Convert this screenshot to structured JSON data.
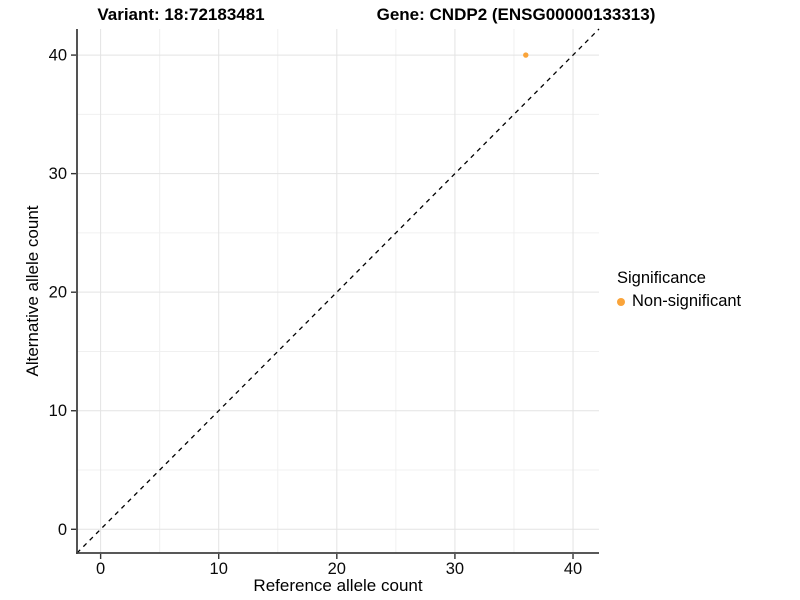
{
  "figure": {
    "title_left": "Variant: 18:72183481",
    "title_right": "Gene: CNDP2 (ENSG00000133313)"
  },
  "chart_data": {
    "type": "scatter",
    "title": "Variant: 18:72183481 — Gene: CNDP2 (ENSG00000133313)",
    "xlabel": "Reference allele count",
    "ylabel": "Alternative allele count",
    "xlim": [
      -2,
      42.2
    ],
    "ylim": [
      -2,
      42.2
    ],
    "x_ticks": [
      0,
      10,
      20,
      30,
      40
    ],
    "y_ticks": [
      0,
      10,
      20,
      30,
      40
    ],
    "x_minor_ticks": [
      5,
      15,
      25,
      35
    ],
    "y_minor_ticks": [
      5,
      15,
      25,
      35
    ],
    "grid": true,
    "points": [
      {
        "x": 36,
        "y": 40,
        "series": "Non-significant"
      }
    ],
    "identity_line": {
      "style": "dashed",
      "from": -2,
      "to": 42.2
    },
    "legend": {
      "title": "Significance",
      "position": "right",
      "entries": [
        {
          "label": "Non-significant",
          "color": "#FAA43A"
        }
      ]
    },
    "colors": {
      "point": "#FAA43A",
      "grid_major": "#e3e3e3",
      "grid_minor": "#f0f0f0",
      "axis_line": "#404040",
      "tick_mark": "#333333",
      "tick_label": "#0a0a0a",
      "identity_line": "#000000",
      "background": "#ffffff"
    }
  }
}
